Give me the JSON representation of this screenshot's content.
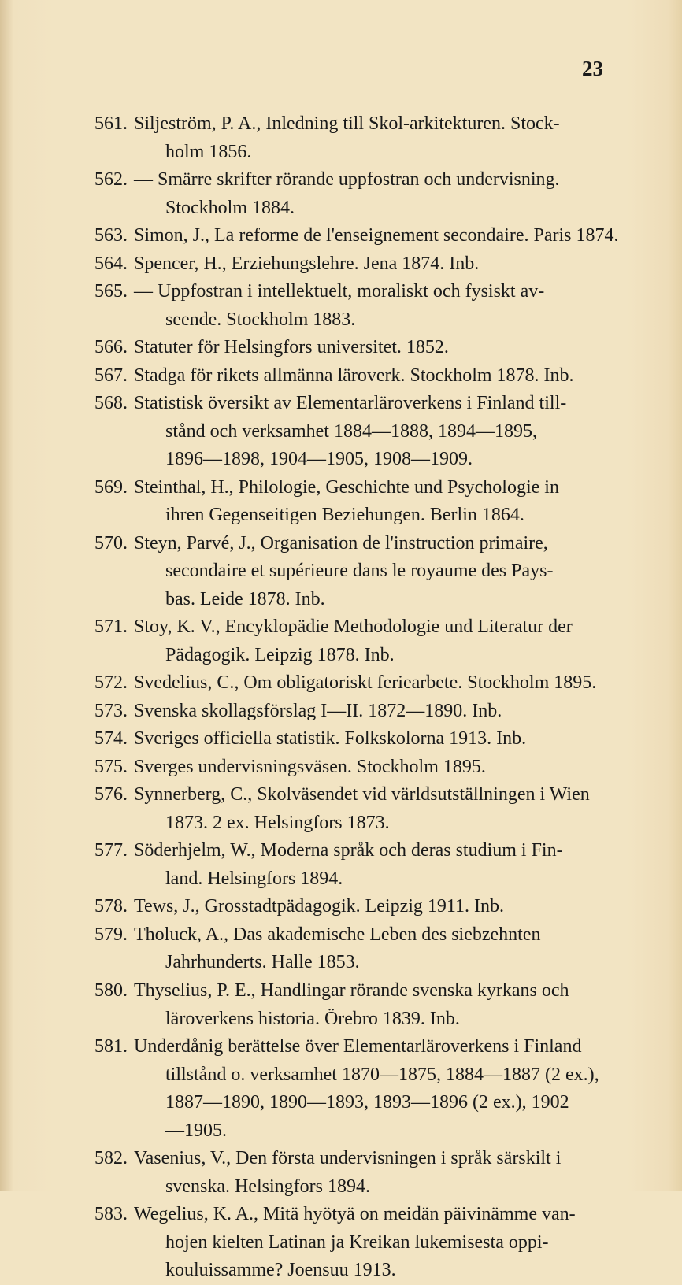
{
  "page_number": "23",
  "text_color": "#1a1a1a",
  "background_color": "#f2e4c3",
  "font_size_body": 24,
  "font_size_pagenum": 27,
  "entries": [
    {
      "num": "561.",
      "lines": [
        "Siljeström, P. A., Inledning till Skol-arkitekturen.  Stock-",
        "holm 1856."
      ]
    },
    {
      "num": "562.",
      "lines": [
        "—  Smärre skrifter rörande uppfostran och undervisning.",
        "Stockholm 1884."
      ]
    },
    {
      "num": "563.",
      "lines": [
        "Simon, J., La reforme de l'enseignement secondaire. Paris 1874."
      ]
    },
    {
      "num": "564.",
      "lines": [
        "Spencer, H., Erziehungslehre.   Jena 1874.   Inb."
      ]
    },
    {
      "num": "565.",
      "lines": [
        "—  Uppfostran i intellektuelt, moraliskt och fysiskt av-",
        "seende.   Stockholm 1883."
      ]
    },
    {
      "num": "566.",
      "lines": [
        "Statuter för Helsingfors universitet.   1852."
      ]
    },
    {
      "num": "567.",
      "lines": [
        "Stadga för rikets allmänna läroverk. Stockholm 1878. Inb."
      ]
    },
    {
      "num": "568.",
      "lines": [
        "Statistisk översikt av Elementarläroverkens i Finland till-",
        "stånd  och  verksamhet  1884—1888,  1894—1895,",
        "1896—1898, 1904—1905, 1908—1909."
      ]
    },
    {
      "num": "569.",
      "lines": [
        "Steinthal, H., Philologie, Geschichte und Psychologie in",
        "ihren Gegenseitigen Beziehungen.   Berlin 1864."
      ]
    },
    {
      "num": "570.",
      "lines": [
        "Steyn, Parvé, J., Organisation de l'instruction primaire,",
        "secondaire et supérieure dans le royaume des Pays-",
        "bas.   Leide 1878.   Inb."
      ]
    },
    {
      "num": "571.",
      "lines": [
        "Stoy, K. V., Encyklopädie Methodologie und Literatur der",
        "Pädagogik.   Leipzig 1878.   Inb."
      ]
    },
    {
      "num": "572.",
      "lines": [
        "Svedelius, C., Om obligatoriskt feriearbete. Stockholm 1895."
      ]
    },
    {
      "num": "573.",
      "lines": [
        "Svenska skollagsförslag I—II.   1872—1890.   Inb."
      ]
    },
    {
      "num": "574.",
      "lines": [
        "Sveriges officiella statistik.   Folkskolorna 1913.   Inb."
      ]
    },
    {
      "num": "575.",
      "lines": [
        "Sverges undervisningsväsen.   Stockholm 1895."
      ]
    },
    {
      "num": "576.",
      "lines": [
        "Synnerberg, C., Skolväsendet vid världsutställningen i Wien",
        "1873. 2 ex.   Helsingfors 1873."
      ]
    },
    {
      "num": "577.",
      "lines": [
        "Söderhjelm, W., Moderna språk och deras studium i Fin-",
        "land.   Helsingfors 1894."
      ]
    },
    {
      "num": "578.",
      "lines": [
        "Tews, J., Grosstadtpädagogik.   Leipzig 1911.   Inb."
      ]
    },
    {
      "num": "579.",
      "lines": [
        "Tholuck, A., Das akademische Leben des siebzehnten",
        "Jahrhunderts.   Halle 1853."
      ]
    },
    {
      "num": "580.",
      "lines": [
        "Thyselius, P. E., Handlingar rörande svenska kyrkans och",
        "läroverkens historia.   Örebro 1839.   Inb."
      ]
    },
    {
      "num": "581.",
      "lines": [
        "Underdånig berättelse över Elementarläroverkens i Finland",
        "tillstånd o. verksamhet 1870—1875, 1884—1887 (2 ex.),",
        "1887—1890, 1890—1893, 1893—1896 (2 ex.), 1902",
        "—1905."
      ]
    },
    {
      "num": "582.",
      "lines": [
        "Vasenius, V., Den första undervisningen i språk särskilt i",
        "svenska.   Helsingfors 1894."
      ]
    },
    {
      "num": "583.",
      "lines": [
        "Wegelius, K. A., Mitä hyötyä on meidän päivinämme van-",
        "hojen kielten Latinan ja Kreikan lukemisesta oppi-",
        "kouluissamme?   Joensuu 1913."
      ]
    }
  ]
}
